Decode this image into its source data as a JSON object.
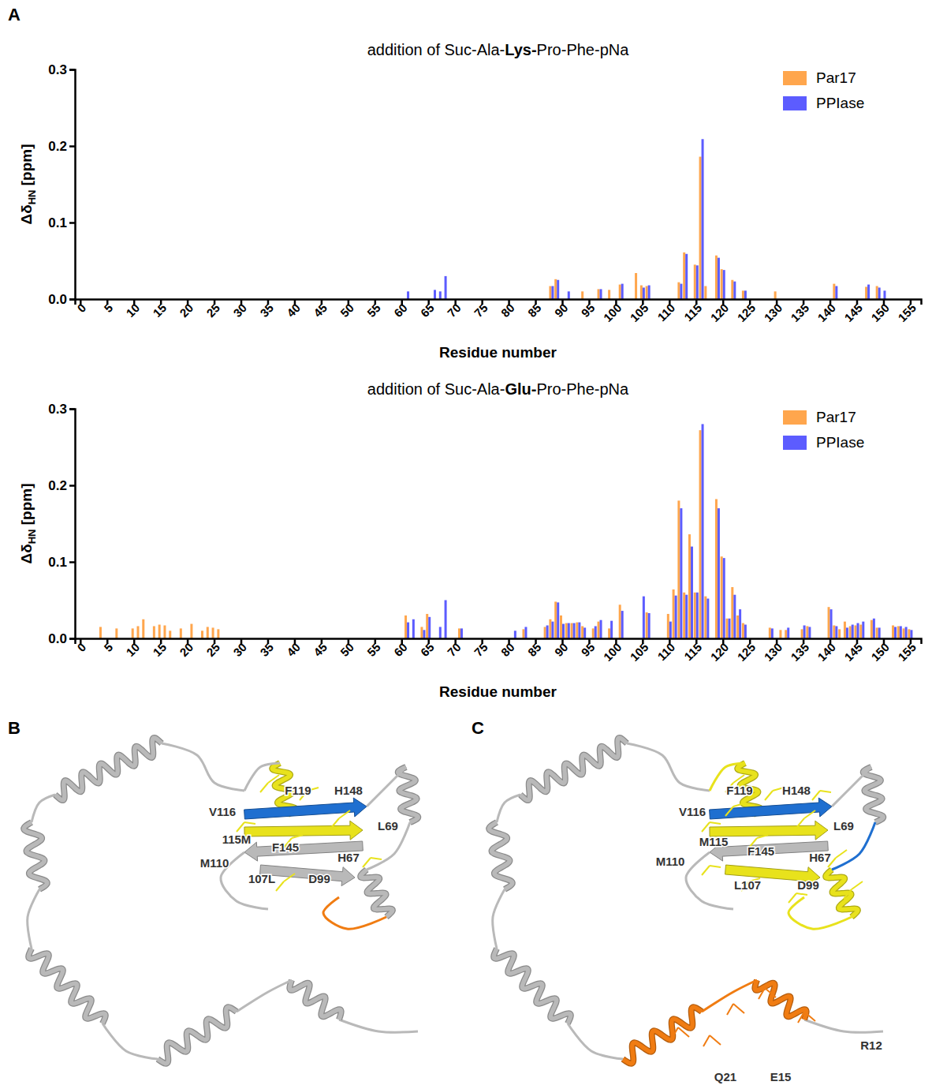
{
  "chart_data": [
    {
      "type": "bar",
      "title": "addition of Suc-Ala-Lys-Pro-Phe-pNa",
      "x_label": "Residue number",
      "y_label": "ΔδHN [ppm]",
      "x": [
        61,
        66,
        67,
        68,
        88,
        89,
        91,
        94,
        97,
        99,
        101,
        104,
        105,
        106,
        112,
        113,
        115,
        116,
        117,
        119,
        120,
        122,
        124,
        130,
        141,
        147,
        149,
        150
      ],
      "series": [
        {
          "name": "Par17",
          "color": "#ffa64d",
          "values": [
            null,
            null,
            null,
            null,
            0.017,
            0.026,
            null,
            0.01,
            0.013,
            0.012,
            0.019,
            0.034,
            0.018,
            0.017,
            0.022,
            0.061,
            0.045,
            0.186,
            0.017,
            0.057,
            0.039,
            0.025,
            0.011,
            0.01,
            0.02,
            0.016,
            0.017,
            null
          ]
        },
        {
          "name": "PPIase",
          "color": "#5c5cff",
          "values": [
            0.01,
            0.012,
            0.01,
            0.03,
            0.017,
            0.025,
            0.01,
            null,
            0.013,
            null,
            0.02,
            null,
            0.015,
            0.018,
            0.02,
            0.059,
            0.044,
            0.209,
            null,
            0.054,
            0.038,
            0.023,
            0.011,
            null,
            0.017,
            0.019,
            0.015,
            0.011
          ]
        }
      ],
      "xlim": [
        -1,
        157
      ],
      "xticks": [
        0,
        5,
        10,
        15,
        20,
        25,
        30,
        35,
        40,
        45,
        50,
        55,
        60,
        65,
        70,
        75,
        80,
        85,
        90,
        95,
        100,
        105,
        110,
        115,
        120,
        125,
        130,
        135,
        140,
        145,
        150,
        155
      ],
      "ylim": [
        0,
        0.3
      ],
      "yticks": [
        {
          "value": 0,
          "label": "0.0"
        },
        0.1,
        0.2,
        0.3
      ],
      "legend": "top-right"
    },
    {
      "type": "bar",
      "title": "addition of Suc-Ala-Glu-Pro-Phe-pNa",
      "x_label": "Residue number",
      "y_label": "ΔδHN [ppm]",
      "x": [
        4,
        7,
        10,
        11,
        12,
        14,
        15,
        16,
        17,
        19,
        21,
        23,
        24,
        25,
        26,
        61,
        62,
        64,
        65,
        67,
        68,
        71,
        81,
        83,
        87,
        88,
        89,
        90,
        91,
        92,
        93,
        94,
        96,
        97,
        99,
        101,
        105,
        106,
        110,
        111,
        112,
        113,
        114,
        115,
        116,
        117,
        119,
        120,
        121,
        122,
        123,
        124,
        129,
        131,
        132,
        135,
        136,
        140,
        141,
        142,
        143,
        144,
        145,
        146,
        148,
        149,
        152,
        153,
        154,
        155
      ],
      "series": [
        {
          "name": "Par17",
          "color": "#ffa64d",
          "values": [
            0.015,
            0.013,
            0.013,
            0.016,
            0.025,
            0.016,
            0.018,
            0.017,
            0.01,
            0.013,
            0.019,
            0.01,
            0.015,
            0.014,
            0.012,
            0.03,
            null,
            0.015,
            0.032,
            null,
            null,
            0.013,
            null,
            0.012,
            0.015,
            0.025,
            0.048,
            0.03,
            0.02,
            0.02,
            0.021,
            0.016,
            0.013,
            0.022,
            0.013,
            0.044,
            null,
            0.034,
            0.032,
            0.064,
            0.18,
            0.06,
            0.136,
            0.06,
            0.272,
            0.055,
            0.182,
            0.107,
            0.026,
            0.067,
            0.03,
            0.02,
            0.014,
            0.011,
            0.011,
            0.012,
            0.016,
            0.041,
            0.017,
            0.012,
            0.022,
            0.016,
            0.017,
            0.018,
            0.024,
            0.014,
            0.017,
            0.016,
            0.013,
            0.012
          ]
        },
        {
          "name": "PPIase",
          "color": "#5c5cff",
          "values": [
            null,
            null,
            null,
            null,
            null,
            null,
            null,
            null,
            null,
            null,
            null,
            null,
            null,
            null,
            null,
            0.021,
            0.025,
            0.011,
            0.028,
            0.015,
            0.05,
            0.013,
            0.01,
            0.015,
            0.017,
            0.022,
            0.047,
            0.019,
            0.02,
            0.02,
            0.021,
            0.014,
            0.016,
            0.024,
            0.023,
            0.036,
            0.055,
            0.033,
            0.022,
            0.056,
            0.17,
            0.057,
            0.12,
            0.06,
            0.28,
            0.052,
            0.17,
            0.105,
            0.026,
            0.057,
            0.038,
            0.018,
            0.013,
            null,
            0.014,
            0.017,
            0.015,
            0.038,
            0.016,
            null,
            0.014,
            0.018,
            0.02,
            0.022,
            0.026,
            0.014,
            0.015,
            0.016,
            0.015,
            0.011
          ]
        }
      ],
      "xlim": [
        -1,
        157
      ],
      "xticks": [
        0,
        5,
        10,
        15,
        20,
        25,
        30,
        35,
        40,
        45,
        50,
        55,
        60,
        65,
        70,
        75,
        80,
        85,
        90,
        95,
        100,
        105,
        110,
        115,
        120,
        125,
        130,
        135,
        140,
        145,
        150,
        155
      ],
      "ylim": [
        0,
        0.3
      ],
      "yticks": [
        {
          "value": 0,
          "label": "0.0"
        },
        0.1,
        0.2,
        0.3
      ],
      "legend": "top-right"
    }
  ],
  "panel_letters": [
    "A",
    "B",
    "C"
  ],
  "structures": [
    {
      "labels": [
        "F119",
        "H148",
        "V116",
        "L69",
        "115M",
        "F145",
        "H67",
        "M110",
        "107L",
        "D99"
      ]
    },
    {
      "labels": [
        "F119",
        "H148",
        "V116",
        "L69",
        "M115",
        "M110",
        "F145",
        "H67",
        "L107",
        "D99",
        "R12",
        "Q21",
        "E15"
      ]
    }
  ]
}
